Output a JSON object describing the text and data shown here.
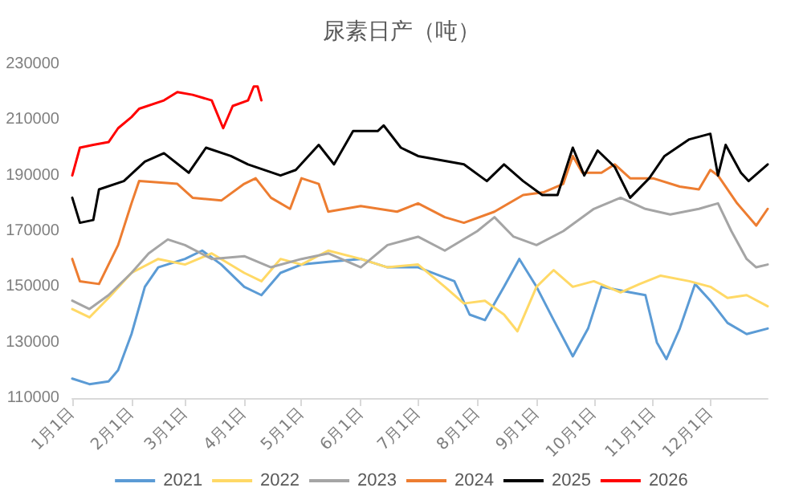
{
  "chart_data": {
    "type": "line",
    "title": "尿素日产（吨）",
    "marker": "none",
    "line_style": "solid",
    "grid": false,
    "legend": "bottom",
    "ylim": [
      110000,
      230000
    ],
    "yticks": [
      110000,
      130000,
      150000,
      170000,
      190000,
      210000,
      230000
    ],
    "xlim": [
      "--01-01",
      "--12-31"
    ],
    "xticks": [
      {
        "value": "--01-01",
        "label": "1月1日"
      },
      {
        "value": "--02-01",
        "label": "2月1日"
      },
      {
        "value": "--03-01",
        "label": "3月1日"
      },
      {
        "value": "--04-01",
        "label": "4月1日"
      },
      {
        "value": "--05-01",
        "label": "5月1日"
      },
      {
        "value": "--06-01",
        "label": "6月1日"
      },
      {
        "value": "--07-01",
        "label": "7月1日"
      },
      {
        "value": "--08-01",
        "label": "8月1日"
      },
      {
        "value": "--09-01",
        "label": "9月1日"
      },
      {
        "value": "--10-01",
        "label": "10月1日"
      },
      {
        "value": "--11-01",
        "label": "11月1日"
      },
      {
        "value": "--12-01",
        "label": "12月1日"
      }
    ],
    "series": [
      {
        "name": "2021",
        "color": "#5b9bd5",
        "x": [
          "--01-01",
          "--01-10",
          "--01-20",
          "--01-25",
          "--02-01",
          "--02-08",
          "--02-15",
          "--03-01",
          "--03-10",
          "--03-20",
          "--04-01",
          "--04-10",
          "--04-20",
          "--05-01",
          "--05-15",
          "--06-01",
          "--06-15",
          "--07-01",
          "--07-20",
          "--07-28",
          "--08-05",
          "--08-15",
          "--08-23",
          "--09-01",
          "--09-10",
          "--09-20",
          "--09-28",
          "--10-05",
          "--10-20",
          "--10-28",
          "--11-03",
          "--11-08",
          "--11-15",
          "--11-23",
          "--12-01",
          "--12-10",
          "--12-20",
          "--12-31"
        ],
        "values": [
          117000,
          115000,
          116000,
          120000,
          133000,
          150000,
          157000,
          160000,
          163000,
          158000,
          150000,
          147000,
          155000,
          158000,
          159000,
          160000,
          157000,
          157000,
          152000,
          140000,
          138000,
          150000,
          160000,
          150000,
          138000,
          125000,
          135000,
          150000,
          148000,
          147000,
          130000,
          124000,
          135000,
          151000,
          145000,
          137000,
          133000,
          135000
        ]
      },
      {
        "name": "2022",
        "color": "#ffd966",
        "x": [
          "--01-01",
          "--01-10",
          "--01-20",
          "--02-01",
          "--02-15",
          "--03-01",
          "--03-15",
          "--04-01",
          "--04-10",
          "--04-20",
          "--05-01",
          "--05-15",
          "--06-01",
          "--06-15",
          "--07-01",
          "--07-15",
          "--07-25",
          "--08-05",
          "--08-15",
          "--08-22",
          "--09-01",
          "--09-10",
          "--09-20",
          "--10-01",
          "--10-15",
          "--10-25",
          "--11-05",
          "--11-20",
          "--12-01",
          "--12-10",
          "--12-20",
          "--12-31"
        ],
        "values": [
          142000,
          139000,
          146000,
          155000,
          160000,
          158000,
          162000,
          155000,
          152000,
          160000,
          158000,
          163000,
          160000,
          157000,
          158000,
          150000,
          144000,
          145000,
          140000,
          134000,
          150000,
          156000,
          150000,
          152000,
          148000,
          151000,
          154000,
          152000,
          150000,
          146000,
          147000,
          143000
        ]
      },
      {
        "name": "2023",
        "color": "#a5a5a5",
        "x": [
          "--01-01",
          "--01-10",
          "--01-20",
          "--02-01",
          "--02-10",
          "--02-20",
          "--03-01",
          "--03-15",
          "--04-01",
          "--04-15",
          "--05-01",
          "--05-15",
          "--06-01",
          "--06-15",
          "--07-01",
          "--07-15",
          "--08-01",
          "--08-10",
          "--08-20",
          "--09-01",
          "--09-15",
          "--10-01",
          "--10-15",
          "--10-28",
          "--11-10",
          "--11-25",
          "--12-05",
          "--12-12",
          "--12-20",
          "--12-25",
          "--12-31"
        ],
        "values": [
          145000,
          142000,
          147000,
          155000,
          162000,
          167000,
          165000,
          160000,
          161000,
          157000,
          160000,
          162000,
          157000,
          165000,
          168000,
          163000,
          170000,
          175000,
          168000,
          165000,
          170000,
          178000,
          182000,
          178000,
          176000,
          178000,
          180000,
          170000,
          160000,
          157000,
          158000
        ]
      },
      {
        "name": "2024",
        "color": "#ed7d31",
        "x": [
          "--01-01",
          "--01-05",
          "--01-15",
          "--01-25",
          "--02-01",
          "--02-05",
          "--02-25",
          "--03-05",
          "--03-20",
          "--04-01",
          "--04-07",
          "--04-15",
          "--04-25",
          "--05-01",
          "--05-10",
          "--05-15",
          "--06-01",
          "--06-20",
          "--07-01",
          "--07-15",
          "--07-25",
          "--08-10",
          "--08-25",
          "--09-05",
          "--09-15",
          "--09-20",
          "--09-25",
          "--10-05",
          "--10-12",
          "--10-20",
          "--11-01",
          "--11-15",
          "--11-25",
          "--12-01",
          "--12-05",
          "--12-15",
          "--12-25",
          "--12-31"
        ],
        "values": [
          160000,
          152000,
          151000,
          165000,
          180000,
          188000,
          187000,
          182000,
          181000,
          187000,
          189000,
          182000,
          178000,
          189000,
          187000,
          177000,
          179000,
          177000,
          180000,
          175000,
          173000,
          177000,
          183000,
          184000,
          187000,
          197000,
          191000,
          191000,
          194000,
          189000,
          189000,
          186000,
          185000,
          192000,
          190000,
          180000,
          172000,
          178000
        ]
      },
      {
        "name": "2025",
        "color": "#000000",
        "x": [
          "--01-01",
          "--01-05",
          "--01-12",
          "--01-15",
          "--01-28",
          "--02-08",
          "--02-18",
          "--03-03",
          "--03-12",
          "--03-25",
          "--04-03",
          "--04-20",
          "--04-28",
          "--05-10",
          "--05-18",
          "--05-28",
          "--06-10",
          "--06-13",
          "--06-22",
          "--07-01",
          "--07-25",
          "--08-06",
          "--08-15",
          "--08-25",
          "--09-04",
          "--09-12",
          "--09-20",
          "--09-26",
          "--10-03",
          "--10-12",
          "--10-20",
          "--10-30",
          "--11-07",
          "--11-20",
          "--12-01",
          "--12-05",
          "--12-09",
          "--12-17",
          "--12-21",
          "--12-31"
        ],
        "values": [
          182000,
          173000,
          174000,
          185000,
          188000,
          195000,
          198000,
          191000,
          200000,
          197000,
          194000,
          190000,
          192000,
          201000,
          194000,
          206000,
          206000,
          208000,
          200000,
          197000,
          194000,
          188000,
          194000,
          188000,
          183000,
          183000,
          200000,
          190000,
          199000,
          193000,
          182000,
          189000,
          197000,
          203000,
          205000,
          190000,
          201000,
          191000,
          188000,
          194000
        ]
      },
      {
        "name": "2026",
        "color": "#ff0000",
        "x": [
          "--01-01",
          "--01-05",
          "--01-12",
          "--01-20",
          "--01-25",
          "--02-01",
          "--02-05",
          "--02-18",
          "--02-25",
          "--03-05",
          "--03-15",
          "--03-21",
          "--03-26",
          "--04-03",
          "--04-06",
          "--04-08",
          "--04-10"
        ],
        "values": [
          190000,
          200000,
          201000,
          202000,
          207000,
          211000,
          214000,
          217000,
          220000,
          219000,
          217000,
          207000,
          215000,
          217000,
          222000,
          222000,
          217000
        ]
      }
    ]
  }
}
